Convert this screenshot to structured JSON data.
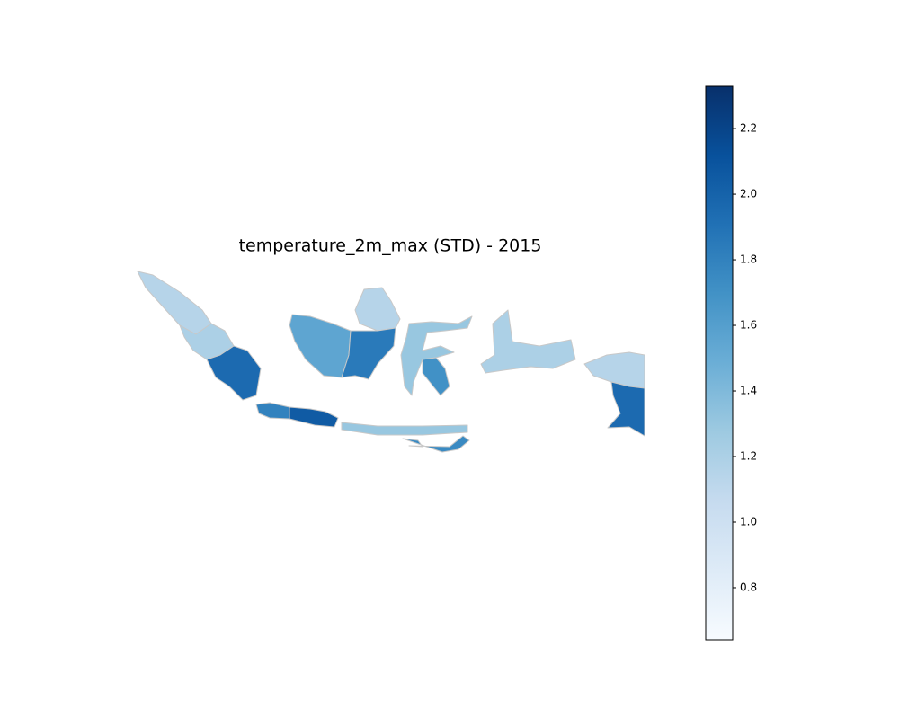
{
  "chart_data": {
    "type": "choropleth",
    "title": "temperature_2m_max (STD) - 2015",
    "colormap": "Blues",
    "values": [
      1.15,
      1.2,
      1.95,
      1.8,
      2.05,
      1.3,
      1.55,
      1.15,
      1.85,
      1.3,
      1.7,
      1.2,
      1.15,
      1.95,
      1.75
    ],
    "ylim": [
      0.641,
      2.329
    ],
    "yticks": [
      0.8,
      {
        "value": 1,
        "label": "1.0"
      },
      1.2,
      1.4,
      1.6,
      1.8,
      {
        "value": 2,
        "label": "2.0"
      },
      2.2
    ]
  }
}
